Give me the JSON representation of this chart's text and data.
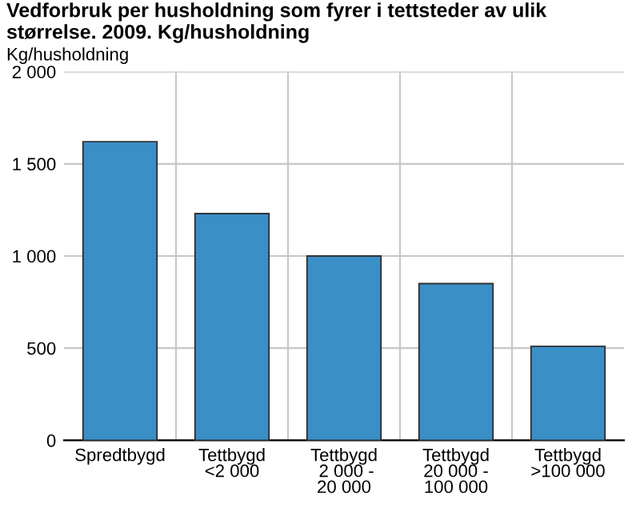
{
  "chart_data": {
    "type": "bar",
    "title": "Vedforbruk per husholdning som fyrer i tettsteder av ulik størrelse. 2009. Kg/husholdning",
    "ylabel": "Kg/husholdning",
    "categories": [
      "Spredtbygd",
      "Tettbygd\n<2 000",
      "Tettbygd\n 2 000 -\n20 000",
      "Tettbygd\n20 000 -\n100 000",
      "Tettbygd\n>100 000"
    ],
    "values": [
      1620,
      1230,
      1000,
      850,
      510
    ],
    "color": "#3a8fc7",
    "ylim": [
      0,
      2000
    ],
    "yticks": [
      {
        "value": 0,
        "label": "0"
      },
      {
        "value": 500,
        "label": "500"
      },
      {
        "value": 1000,
        "label": "1 000"
      },
      {
        "value": 1500,
        "label": "1 500"
      },
      {
        "value": 2000,
        "label": "2 000"
      }
    ],
    "grid": true
  }
}
